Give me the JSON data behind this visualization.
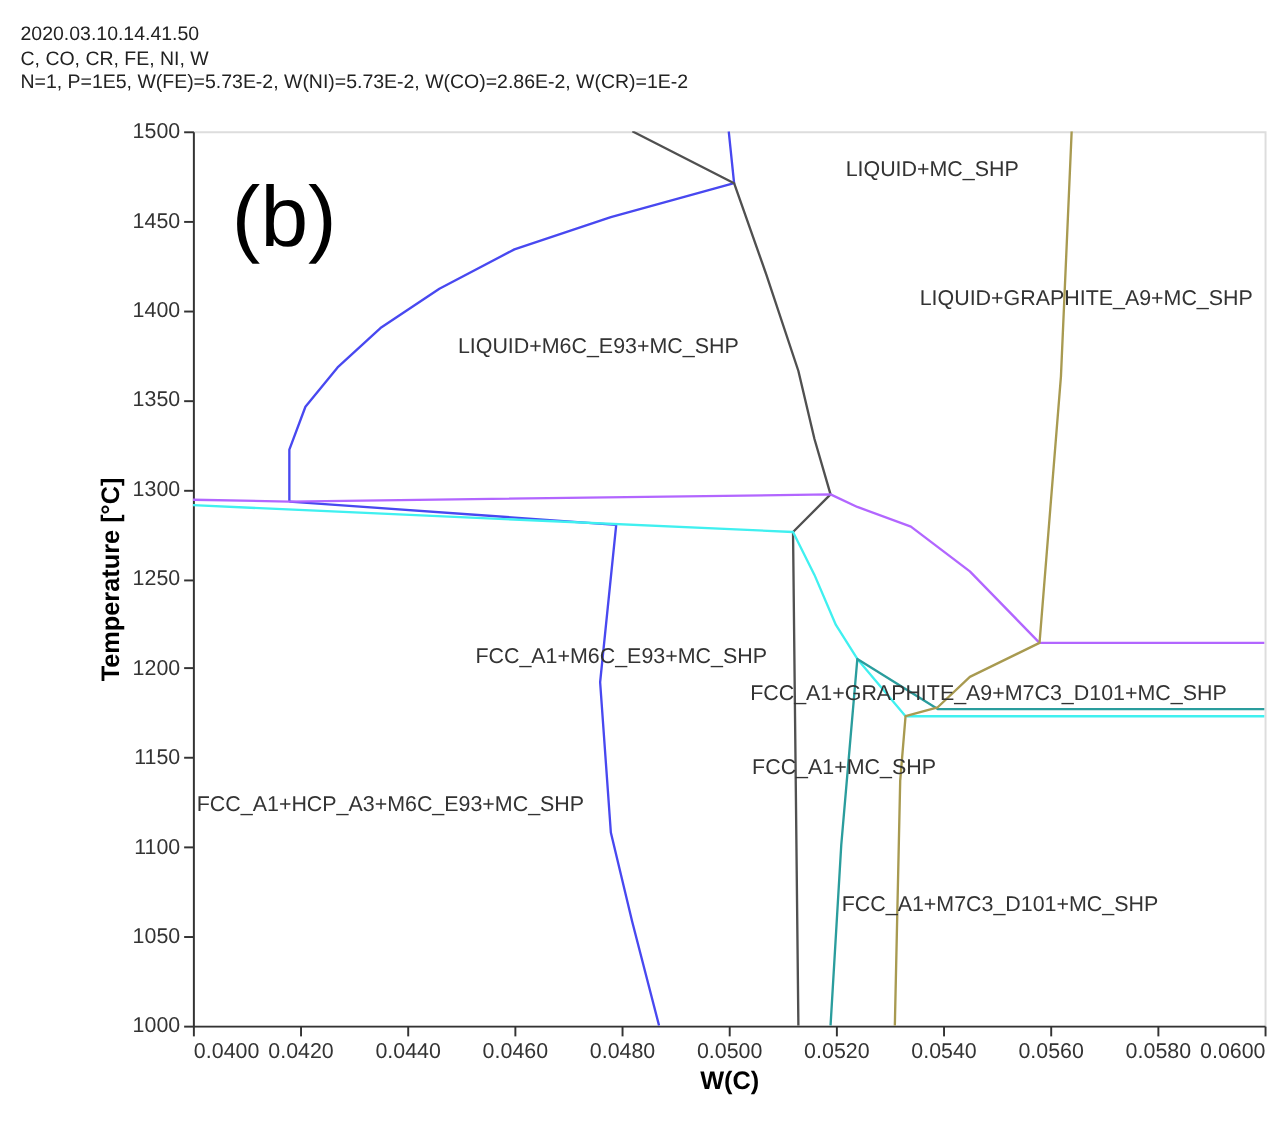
{
  "chart_data": {
    "type": "line",
    "title": "2020.03.10.14.41.50",
    "subtitle": "C, CO, CR, FE, NI, W\nN=1, P=1E5, W(FE)=5.73E-2, W(NI)=5.73E-2, W(CO)=2.86E-2, W(CR)=1E-2",
    "xlabel": "W(C)",
    "ylabel": "Temperature [°C]",
    "xlim": [
      0.04,
      0.06
    ],
    "ylim": [
      1000,
      1500
    ],
    "xticks": [
      {
        "value": 0.04,
        "label": "0.0400"
      },
      {
        "value": 0.042,
        "label": "0.0420"
      },
      {
        "value": 0.044,
        "label": "0.0440"
      },
      {
        "value": 0.046,
        "label": "0.0460"
      },
      {
        "value": 0.048,
        "label": "0.0480"
      },
      {
        "value": 0.05,
        "label": "0.0500"
      },
      {
        "value": 0.052,
        "label": "0.0520"
      },
      {
        "value": 0.054,
        "label": "0.0540"
      },
      {
        "value": 0.056,
        "label": "0.0560"
      },
      {
        "value": 0.058,
        "label": "0.0580"
      },
      {
        "value": 0.06,
        "label": "0.0600"
      }
    ],
    "yticks": [
      1000,
      1050,
      1100,
      1150,
      1200,
      1250,
      1300,
      1350,
      1400,
      1450,
      1500
    ],
    "grid": false,
    "marker": "none",
    "line_style": "solid",
    "series": [
      {
        "color": "#4848f0",
        "x": [
          0.05,
          0.0501,
          0.0478,
          0.046,
          0.0446,
          0.0435,
          0.0427,
          0.0421,
          0.0418,
          0.0418
        ],
        "values": [
          1500,
          1471,
          1452,
          1434,
          1412,
          1390,
          1368,
          1346,
          1322,
          1293
        ]
      },
      {
        "color": "#4848f0",
        "x": [
          0.0418,
          0.0479,
          0.0476,
          0.0478,
          0.0482,
          0.0487
        ],
        "values": [
          1293,
          1280,
          1192,
          1108,
          1058,
          1000
        ]
      },
      {
        "color": "#505050",
        "x": [
          0.0482,
          0.0501,
          0.0507,
          0.0513,
          0.0516,
          0.0519,
          0.0512,
          0.0513
        ],
        "values": [
          1500,
          1471,
          1420,
          1366,
          1328,
          1297,
          1276,
          1000
        ]
      },
      {
        "color": "#b266ff",
        "x": [
          0.04,
          0.0418,
          0.0519,
          0.0524,
          0.0534,
          0.0545,
          0.0558,
          0.06
        ],
        "values": [
          1294,
          1293,
          1297,
          1290,
          1279,
          1254,
          1214,
          1214
        ]
      },
      {
        "color": "#40f0f0",
        "x": [
          0.04,
          0.0512,
          0.0516,
          0.052,
          0.0524,
          0.0533,
          0.06
        ],
        "values": [
          1291,
          1276,
          1252,
          1224,
          1205,
          1173,
          1173
        ]
      },
      {
        "color": "#2a9d9d",
        "x": [
          0.06,
          0.0539,
          0.0524,
          0.0521,
          0.0519
        ],
        "values": [
          1177,
          1177,
          1205,
          1101,
          1000
        ]
      },
      {
        "color": "#a89a50",
        "x": [
          0.0564,
          0.0562,
          0.0558,
          0.0545,
          0.0539,
          0.0533,
          0.0532,
          0.0531
        ],
        "values": [
          1500,
          1363,
          1214,
          1195,
          1178,
          1173,
          1137,
          1000
        ]
      }
    ],
    "annotations": [
      "(b)",
      "LIQUID+MC_SHP",
      "LIQUID+GRAPHITE_A9+MC_SHP",
      "LIQUID+M6C_E93+MC_SHP",
      "FCC_A1+M6C_E93+MC_SHP",
      "FCC_A1+GRAPHITE_A9+M7C3_D101+MC_SHP",
      "FCC_A1+MC_SHP",
      "FCC_A1+HCP_A3+M6C_E93+MC_SHP",
      "FCC_A1+M7C3_D101+MC_SHP"
    ]
  }
}
